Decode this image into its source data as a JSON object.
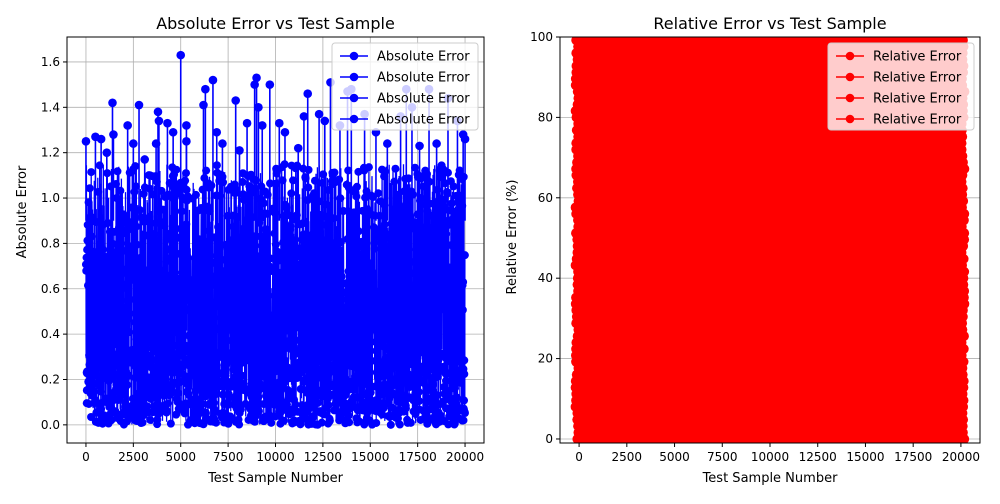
{
  "chart_data": [
    {
      "type": "line",
      "title": "Absolute Error vs Test Sample",
      "xlabel": "Test Sample Number",
      "ylabel": "Absolute Error",
      "xlim": [
        -1000,
        21000
      ],
      "ylim": [
        -0.08,
        1.71
      ],
      "xticks": [
        0,
        2500,
        5000,
        7500,
        10000,
        12500,
        15000,
        17500,
        20000
      ],
      "yticks": [
        0.0,
        0.2,
        0.4,
        0.6,
        0.8,
        1.0,
        1.2,
        1.4,
        1.6
      ],
      "grid": true,
      "legend_position": "top-right",
      "marker": "circle",
      "series": [
        {
          "name": "Absolute Error",
          "color": "#0000ff"
        },
        {
          "name": "Absolute Error",
          "color": "#0000ff"
        },
        {
          "name": "Absolute Error",
          "color": "#0000ff"
        },
        {
          "name": "Absolute Error",
          "color": "#0000ff"
        }
      ],
      "x_range": [
        0,
        20000
      ],
      "bulk_range": [
        0.0,
        1.15
      ],
      "peaks": [
        [
          0,
          1.25
        ],
        [
          500,
          1.27
        ],
        [
          800,
          1.26
        ],
        [
          1100,
          1.2
        ],
        [
          1400,
          1.42
        ],
        [
          1450,
          1.28
        ],
        [
          2200,
          1.32
        ],
        [
          2500,
          1.24
        ],
        [
          2800,
          1.41
        ],
        [
          3100,
          1.17
        ],
        [
          3700,
          1.24
        ],
        [
          3800,
          1.38
        ],
        [
          3850,
          1.34
        ],
        [
          4300,
          1.33
        ],
        [
          4600,
          1.29
        ],
        [
          5000,
          1.63
        ],
        [
          5300,
          1.32
        ],
        [
          5300,
          1.25
        ],
        [
          6200,
          1.41
        ],
        [
          6300,
          1.48
        ],
        [
          6700,
          1.52
        ],
        [
          6900,
          1.29
        ],
        [
          7200,
          1.24
        ],
        [
          7900,
          1.43
        ],
        [
          8100,
          1.21
        ],
        [
          8500,
          1.33
        ],
        [
          8900,
          1.5
        ],
        [
          9000,
          1.53
        ],
        [
          9100,
          1.4
        ],
        [
          9300,
          1.32
        ],
        [
          9700,
          1.5
        ],
        [
          10200,
          1.33
        ],
        [
          10500,
          1.29
        ],
        [
          11200,
          1.22
        ],
        [
          11500,
          1.36
        ],
        [
          11700,
          1.46
        ],
        [
          12300,
          1.37
        ],
        [
          12600,
          1.34
        ],
        [
          12900,
          1.51
        ],
        [
          13400,
          1.32
        ],
        [
          13800,
          1.47
        ],
        [
          14000,
          1.48
        ],
        [
          14700,
          1.37
        ],
        [
          15300,
          1.29
        ],
        [
          15900,
          1.24
        ],
        [
          16600,
          1.36
        ],
        [
          16900,
          1.48
        ],
        [
          17200,
          1.4
        ],
        [
          17600,
          1.23
        ],
        [
          18100,
          1.48
        ],
        [
          18500,
          1.24
        ],
        [
          19100,
          1.44
        ],
        [
          19600,
          1.34
        ],
        [
          19900,
          1.28
        ],
        [
          20000,
          1.26
        ]
      ]
    },
    {
      "type": "line",
      "title": "Relative Error vs Test Sample",
      "xlabel": "Test Sample Number",
      "ylabel": "Relative Error (%)",
      "xlim": [
        -1000,
        21000
      ],
      "ylim": [
        -1,
        100
      ],
      "xticks": [
        0,
        2500,
        5000,
        7500,
        10000,
        12500,
        15000,
        17500,
        20000
      ],
      "yticks": [
        0,
        20,
        40,
        60,
        80,
        100
      ],
      "grid": true,
      "legend_position": "top-right",
      "marker": "circle",
      "series": [
        {
          "name": "Relative Error",
          "color": "#ff0000"
        },
        {
          "name": "Relative Error",
          "color": "#ff0000"
        },
        {
          "name": "Relative Error",
          "color": "#ff0000"
        },
        {
          "name": "Relative Error",
          "color": "#ff0000"
        }
      ],
      "x_range": [
        0,
        20000
      ],
      "fill_range": [
        0,
        100
      ]
    }
  ]
}
